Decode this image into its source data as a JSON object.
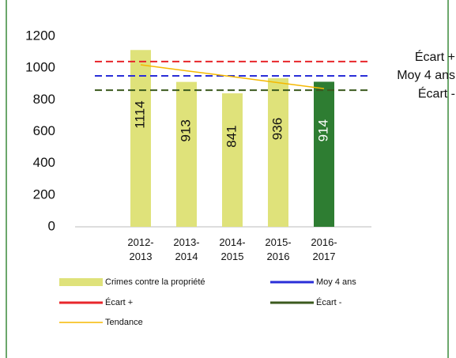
{
  "chart_data": {
    "type": "bar",
    "categories": [
      "2012-\n2013",
      "2013-\n2014",
      "2014-\n2015",
      "2015-\n2016",
      "2016-\n2017"
    ],
    "series": [
      {
        "name": "Crimes contre la propriété",
        "color": "#dfe27a",
        "colors": [
          "#dfe27a",
          "#dfe27a",
          "#dfe27a",
          "#dfe27a",
          "#2e7d32"
        ],
        "values": [
          1114,
          913,
          841,
          936,
          914
        ]
      },
      {
        "name": "Tendance",
        "color": "#f5b800",
        "values": [
          1021,
          983,
          946,
          908,
          871
        ]
      }
    ],
    "reference_lines": [
      {
        "name": "Écart +",
        "color": "#e8262b",
        "value": 1041
      },
      {
        "name": "Moy 4 ans",
        "color": "#2a2ed8",
        "value": 951
      },
      {
        "name": "Écart -",
        "color": "#3b5a1e",
        "value": 861
      }
    ],
    "ylim": [
      0,
      1200
    ],
    "yticks": [
      0,
      200,
      400,
      600,
      800,
      1000,
      1200
    ]
  }
}
